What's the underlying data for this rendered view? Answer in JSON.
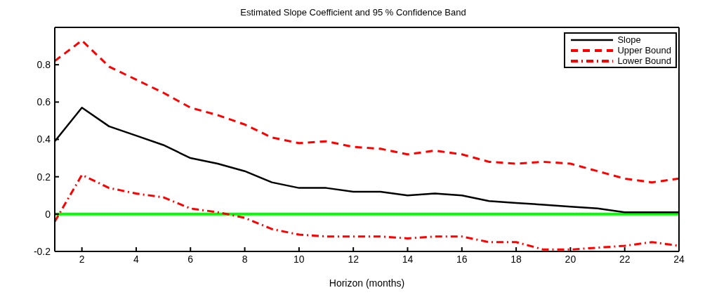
{
  "chart_data": {
    "type": "line",
    "title": "Estimated Slope Coefficient and 95 % Confidence Band",
    "xlabel": "Horizon (months)",
    "x": [
      1,
      2,
      3,
      4,
      5,
      6,
      7,
      8,
      9,
      10,
      11,
      12,
      13,
      14,
      15,
      16,
      17,
      18,
      19,
      20,
      21,
      22,
      23,
      24
    ],
    "series": [
      {
        "name": "Slope",
        "color": "#000000",
        "line_style": "solid",
        "values": [
          0.39,
          0.57,
          0.47,
          0.42,
          0.37,
          0.3,
          0.27,
          0.23,
          0.17,
          0.14,
          0.14,
          0.12,
          0.12,
          0.1,
          0.11,
          0.1,
          0.07,
          0.06,
          0.05,
          0.04,
          0.03,
          0.01,
          0.01,
          0.01
        ]
      },
      {
        "name": "Upper Bound",
        "color": "#ff0000",
        "line_style": "dashed",
        "values": [
          0.82,
          0.93,
          0.79,
          0.72,
          0.65,
          0.57,
          0.53,
          0.48,
          0.41,
          0.38,
          0.39,
          0.36,
          0.35,
          0.32,
          0.34,
          0.32,
          0.28,
          0.27,
          0.28,
          0.27,
          0.23,
          0.19,
          0.17,
          0.19
        ]
      },
      {
        "name": "Lower Bound",
        "color": "#ff0000",
        "line_style": "dashdot",
        "values": [
          -0.04,
          0.21,
          0.14,
          0.11,
          0.09,
          0.03,
          0.01,
          -0.02,
          -0.08,
          -0.11,
          -0.12,
          -0.12,
          -0.12,
          -0.13,
          -0.12,
          -0.12,
          -0.15,
          -0.15,
          -0.19,
          -0.19,
          -0.18,
          -0.17,
          -0.15,
          -0.17
        ]
      }
    ],
    "xlim": [
      1,
      24
    ],
    "xticks": [
      2,
      4,
      6,
      8,
      10,
      12,
      14,
      16,
      18,
      20,
      22,
      24
    ],
    "ylim": [
      -0.2,
      1.0
    ],
    "yticks": [
      -0.2,
      0,
      0.2,
      0.4,
      0.6,
      0.8
    ],
    "ref_lines": [
      {
        "axis": "y",
        "value": 0,
        "color": "#00ff00",
        "line_style": "solid"
      }
    ],
    "grid": false,
    "legend": "top right",
    "marker": "none"
  }
}
